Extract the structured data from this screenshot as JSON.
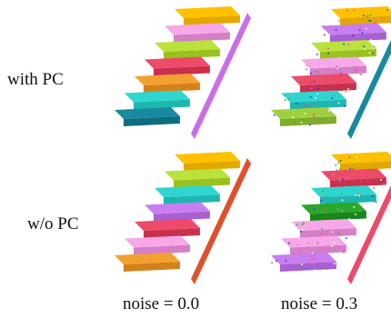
{
  "row_labels": [
    "with PC",
    "w/o PC"
  ],
  "column_labels": [
    "noise = 0.0",
    "noise = 0.3"
  ],
  "panels": [
    {
      "row": 0,
      "col": 0,
      "steps": [
        {
          "top": "#ffc000",
          "front": "#e2a800"
        },
        {
          "top": "#f7a8e8",
          "front": "#d57fc6"
        },
        {
          "top": "#b9e23a",
          "front": "#99c21f"
        },
        {
          "top": "#ee4a6a",
          "front": "#c8304e"
        },
        {
          "top": "#f4a030",
          "front": "#d2821a"
        },
        {
          "top": "#2fd6cf",
          "front": "#1db7b0"
        },
        {
          "top": "#178aa0",
          "front": "#0f6d80"
        }
      ],
      "edge_color": "#c86fe8",
      "noisy": false
    },
    {
      "row": 0,
      "col": 1,
      "steps": [
        {
          "top": "#ffc000",
          "front": "#e2a800"
        },
        {
          "top": "#c97ef0",
          "front": "#a860d2"
        },
        {
          "top": "#b9e23a",
          "front": "#99c21f"
        },
        {
          "top": "#f7a8e8",
          "front": "#d57fc6"
        },
        {
          "top": "#ee4a6a",
          "front": "#c8304e"
        },
        {
          "top": "#2fd6cf",
          "front": "#1db7b0"
        },
        {
          "top": "#9fd040",
          "front": "#7eae28"
        }
      ],
      "edge_color": "#178aa0",
      "noisy": true
    },
    {
      "row": 1,
      "col": 0,
      "steps": [
        {
          "top": "#ffc000",
          "front": "#e2a800"
        },
        {
          "top": "#b9e23a",
          "front": "#99c21f"
        },
        {
          "top": "#2fd6cf",
          "front": "#1db7b0"
        },
        {
          "top": "#c97ef0",
          "front": "#a860d2"
        },
        {
          "top": "#ee4a6a",
          "front": "#c8304e"
        },
        {
          "top": "#f7a8e8",
          "front": "#d57fc6"
        },
        {
          "top": "#f4a030",
          "front": "#d2821a"
        }
      ],
      "edge_color": "#e0502a",
      "noisy": false
    },
    {
      "row": 1,
      "col": 1,
      "steps": [
        {
          "top": "#ffc000",
          "front": "#e2a800"
        },
        {
          "top": "#ee4a6a",
          "front": "#c8304e"
        },
        {
          "top": "#2fd6cf",
          "front": "#1db7b0"
        },
        {
          "top": "#2aa82a",
          "front": "#1a861a"
        },
        {
          "top": "#f7a8e8",
          "front": "#d57fc6"
        },
        {
          "top": "#f7a8e8",
          "front": "#d57fc6"
        },
        {
          "top": "#c97ef0",
          "front": "#a860d2"
        }
      ],
      "edge_color": "#ee4a6a",
      "noisy": true
    }
  ]
}
